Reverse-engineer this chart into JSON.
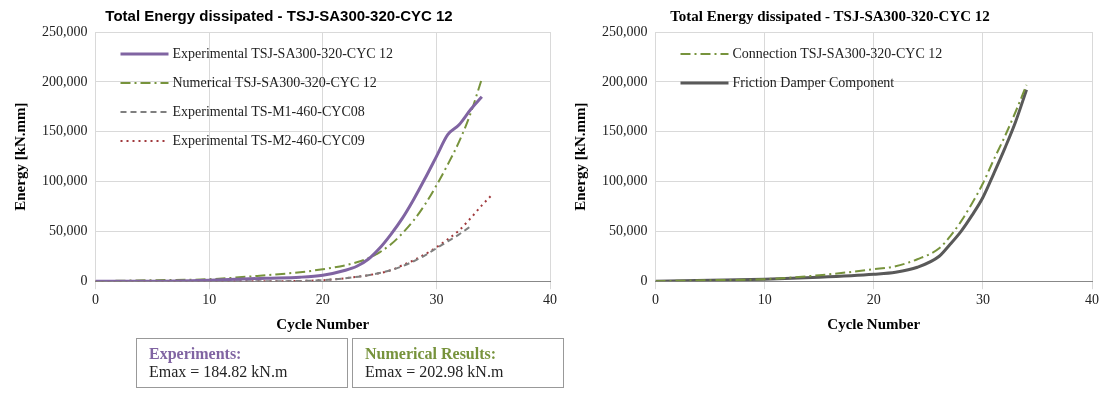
{
  "chart_data": [
    {
      "type": "line",
      "title": "Total Energy dissipated - TSJ-SA300-320-CYC 12",
      "xlabel": "Cycle Number",
      "ylabel": "Energy [kN.mm]",
      "xlim": [
        0,
        40
      ],
      "xticks": [
        0,
        10,
        20,
        30,
        40
      ],
      "ylim": [
        0,
        250000
      ],
      "yticks": [
        0,
        {
          "value": 50000,
          "label": "50,000"
        },
        {
          "value": 100000,
          "label": "100,000"
        },
        {
          "value": 150000,
          "label": "150,000"
        },
        {
          "value": 200000,
          "label": "200,000"
        },
        {
          "value": 250000,
          "label": "250,000"
        }
      ],
      "grid": true,
      "legend": "top left",
      "marker": "none",
      "series": [
        {
          "name": "Experimental TSJ-SA300-320-CYC 12",
          "color": "#8064a2",
          "line_style": "solid",
          "x": [
            0,
            5,
            10,
            15,
            18,
            20,
            22,
            23,
            24,
            25,
            26,
            27,
            28,
            29,
            30,
            31,
            32,
            33,
            34
          ],
          "values": [
            0,
            0,
            1000,
            3000,
            4000,
            6000,
            11000,
            15000,
            22000,
            33000,
            47000,
            63000,
            82000,
            103000,
            125000,
            147000,
            157000,
            172000,
            185000
          ]
        },
        {
          "name": "Numerical TSJ-SA300-320-CYC 12",
          "color": "#77933c",
          "line_style": "dashdot",
          "x": [
            0,
            5,
            10,
            15,
            18,
            20,
            22,
            23,
            24,
            25,
            26,
            27,
            28,
            29,
            30,
            31,
            32,
            33,
            34
          ],
          "values": [
            0,
            1000,
            2000,
            6000,
            9000,
            12000,
            16000,
            19000,
            23000,
            29000,
            37000,
            48000,
            61000,
            77000,
            96000,
            117000,
            140000,
            168000,
            203000
          ]
        },
        {
          "name": "Experimental TS-M1-460-CYC08",
          "color": "#7f7f7f",
          "line_style": "dashed",
          "x": [
            0,
            10,
            15,
            20,
            22,
            24,
            26,
            27,
            28,
            29,
            30,
            31,
            32,
            33
          ],
          "values": [
            0,
            0,
            0,
            1000,
            3000,
            6000,
            11000,
            15000,
            20000,
            26000,
            33000,
            40000,
            47000,
            55000
          ]
        },
        {
          "name": "Experimental TS-M2-460-CYC09",
          "color": "#a0393c",
          "line_style": "dotted",
          "x": [
            0,
            10,
            15,
            20,
            22,
            24,
            26,
            27,
            28,
            29,
            30,
            31,
            32,
            33,
            34,
            35
          ],
          "values": [
            0,
            0,
            0,
            1000,
            3000,
            6000,
            11000,
            16000,
            21000,
            27000,
            34000,
            42000,
            51000,
            63000,
            76000,
            88000
          ]
        }
      ],
      "annotations": [
        "Experiments:",
        "Emax = 184.82 kN.m",
        "Numerical Results:",
        "Emax = 202.98  kN.m"
      ]
    },
    {
      "type": "line",
      "title": "Total Energy dissipated - TSJ-SA300-320-CYC 12",
      "xlabel": "Cycle Number",
      "ylabel": "Energy [kN.mm]",
      "xlim": [
        0,
        40
      ],
      "xticks": [
        0,
        10,
        20,
        30,
        40
      ],
      "ylim": [
        0,
        250000
      ],
      "yticks": [
        0,
        {
          "value": 50000,
          "label": "50,000"
        },
        {
          "value": 100000,
          "label": "100,000"
        },
        {
          "value": 150000,
          "label": "150,000"
        },
        {
          "value": 200000,
          "label": "200,000"
        },
        {
          "value": 250000,
          "label": "250,000"
        }
      ],
      "grid": true,
      "legend": "top left",
      "marker": "none",
      "series": [
        {
          "name": "Connection TSJ-SA300-320-CYC 12",
          "color": "#77933c",
          "line_style": "dashdot",
          "x": [
            0,
            5,
            10,
            15,
            20,
            22,
            24,
            26,
            27,
            28,
            29,
            30,
            31,
            32,
            33,
            34
          ],
          "values": [
            0,
            1000,
            2000,
            6000,
            12000,
            15000,
            22000,
            33000,
            45000,
            60000,
            78000,
            98000,
            122000,
            145000,
            170000,
            197000
          ]
        },
        {
          "name": "Friction Damper Component",
          "color": "#595959",
          "line_style": "solid",
          "x": [
            0,
            5,
            10,
            15,
            20,
            22,
            24,
            26,
            27,
            28,
            29,
            30,
            31,
            32,
            33,
            34
          ],
          "values": [
            0,
            1000,
            2000,
            4000,
            7000,
            9000,
            14000,
            25000,
            37000,
            50000,
            66000,
            84000,
            108000,
            133000,
            160000,
            192000
          ]
        }
      ]
    }
  ]
}
